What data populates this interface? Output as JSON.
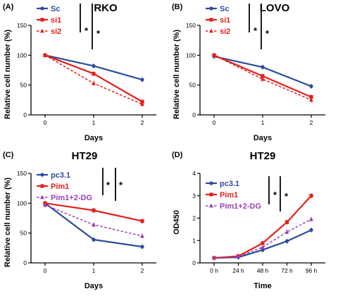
{
  "colors": {
    "blue": "#2b4c9b",
    "red": "#e3201b",
    "purple": "#9b3fb5",
    "axis": "#000000"
  },
  "chart_data": [
    {
      "type": "line",
      "panel_label": "(A)",
      "title": "RKO",
      "xlabel": "Days",
      "ylabel": "Relative cell number (%)",
      "x": [
        "0",
        "1",
        "2"
      ],
      "ylim": [
        0,
        150
      ],
      "yticks": [
        "0",
        "50",
        "100",
        "150"
      ],
      "series": [
        {
          "name": "Sc",
          "values": [
            100,
            82,
            59
          ],
          "color": "#2b4c9b",
          "dashed": false,
          "marker": "circle"
        },
        {
          "name": "si1",
          "values": [
            100,
            69,
            22
          ],
          "color": "#e3201b",
          "dashed": false,
          "marker": "square"
        },
        {
          "name": "si2",
          "values": [
            100,
            53,
            18
          ],
          "color": "#e3201b",
          "dashed": true,
          "marker": "triangle"
        }
      ],
      "significance": [
        "*",
        "*"
      ]
    },
    {
      "type": "line",
      "panel_label": "(B)",
      "title": "LOVO",
      "xlabel": "Days",
      "ylabel": "Relative cell number (%)",
      "x": [
        "0",
        "1",
        "2"
      ],
      "ylim": [
        0,
        150
      ],
      "yticks": [
        "0",
        "50",
        "100",
        "150"
      ],
      "series": [
        {
          "name": "Sc",
          "values": [
            98,
            80,
            48
          ],
          "color": "#2b4c9b",
          "dashed": false,
          "marker": "circle"
        },
        {
          "name": "si1",
          "values": [
            100,
            65,
            30
          ],
          "color": "#e3201b",
          "dashed": false,
          "marker": "square"
        },
        {
          "name": "si2",
          "values": [
            100,
            60,
            25
          ],
          "color": "#e3201b",
          "dashed": true,
          "marker": "triangle"
        }
      ],
      "significance": [
        "*",
        "*"
      ]
    },
    {
      "type": "line",
      "panel_label": "(C)",
      "title": "HT29",
      "xlabel": "Days",
      "ylabel": "Relative cell number (%)",
      "x": [
        "0",
        "1",
        "2"
      ],
      "ylim": [
        0,
        150
      ],
      "yticks": [
        "0",
        "50",
        "100",
        "150"
      ],
      "series": [
        {
          "name": "pc3.1",
          "values": [
            100,
            39,
            27
          ],
          "color": "#2b4c9b",
          "dashed": false,
          "marker": "circle"
        },
        {
          "name": "Pim1",
          "values": [
            100,
            88,
            70
          ],
          "color": "#e3201b",
          "dashed": false,
          "marker": "square"
        },
        {
          "name": "Pim1+2-DG",
          "values": [
            97,
            64,
            45
          ],
          "color": "#9b3fb5",
          "dashed": true,
          "marker": "triangle"
        }
      ],
      "significance": [
        "*",
        "*"
      ]
    },
    {
      "type": "line",
      "panel_label": "(D)",
      "title": "HT29",
      "xlabel": "Time",
      "ylabel": "OD450",
      "x": [
        "0 h",
        "24 h",
        "48 h",
        "72 h",
        "96 h"
      ],
      "ylim": [
        0,
        4
      ],
      "yticks": [
        "0",
        "1",
        "2",
        "3",
        "4"
      ],
      "series": [
        {
          "name": "pc3.1",
          "values": [
            0.22,
            0.25,
            0.58,
            0.97,
            1.47
          ],
          "color": "#2b4c9b",
          "dashed": false,
          "marker": "circle"
        },
        {
          "name": "Pim1",
          "values": [
            0.22,
            0.3,
            0.88,
            1.82,
            3.0
          ],
          "color": "#e3201b",
          "dashed": false,
          "marker": "square"
        },
        {
          "name": "Pim1+2-DG",
          "values": [
            0.22,
            0.28,
            0.7,
            1.38,
            1.95
          ],
          "color": "#9b3fb5",
          "dashed": true,
          "marker": "triangle"
        }
      ],
      "significance": [
        "*",
        "*"
      ]
    }
  ]
}
